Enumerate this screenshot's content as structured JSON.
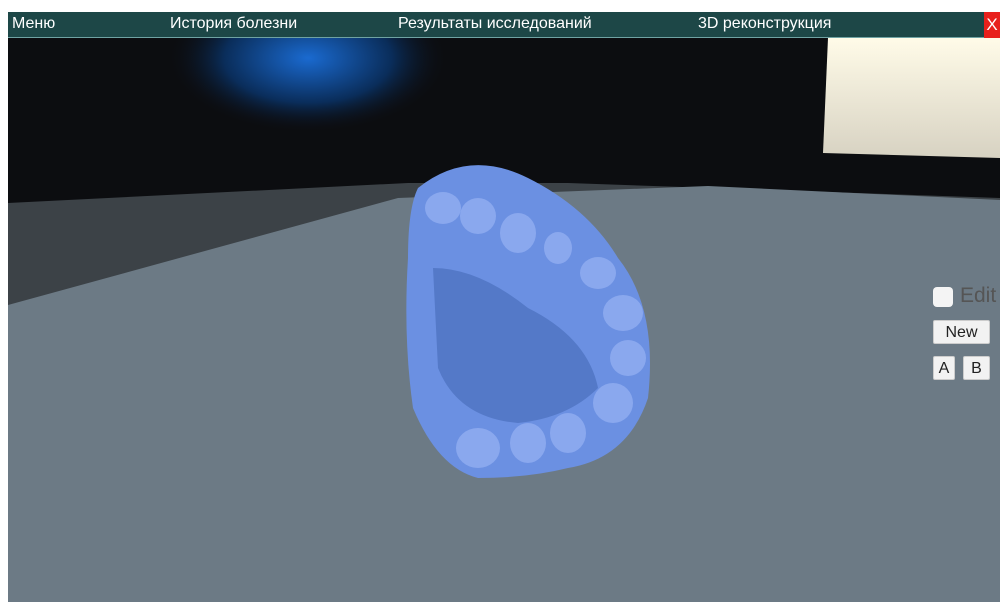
{
  "menu": {
    "items": [
      "Меню",
      "История болезни",
      "Результаты исследований",
      "3D реконструкция"
    ],
    "close": "X"
  },
  "panel": {
    "edit_checkbox": "Edit",
    "new_button": "New",
    "buttons": [
      "A",
      "B"
    ]
  }
}
